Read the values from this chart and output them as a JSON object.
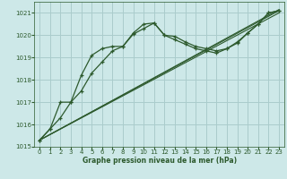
{
  "bg_color": "#cde8e8",
  "grid_color": "#aacccc",
  "line_color": "#2d5a2d",
  "marker_color": "#2d5a2d",
  "xlabel": "Graphe pression niveau de la mer (hPa)",
  "xlabel_color": "#2d5a2d",
  "ylim": [
    1015.0,
    1021.5
  ],
  "yticks": [
    1015,
    1016,
    1017,
    1018,
    1019,
    1020,
    1021
  ],
  "xlim": [
    -0.5,
    23.5
  ],
  "xticks": [
    0,
    1,
    2,
    3,
    4,
    5,
    6,
    7,
    8,
    9,
    10,
    11,
    12,
    13,
    14,
    15,
    16,
    17,
    18,
    19,
    20,
    21,
    22,
    23
  ],
  "curve1_x": [
    0,
    1,
    2,
    3,
    4,
    5,
    6,
    7,
    8,
    9,
    10,
    11,
    12,
    13,
    14,
    15,
    16,
    17,
    18,
    19,
    20,
    21,
    22,
    23
  ],
  "curve1_y": [
    1015.3,
    1015.8,
    1017.0,
    1017.0,
    1018.2,
    1019.1,
    1019.4,
    1019.5,
    1019.5,
    1020.1,
    1020.5,
    1020.55,
    1020.0,
    1019.95,
    1019.7,
    1019.5,
    1019.4,
    1019.3,
    1019.4,
    1019.65,
    1020.1,
    1020.5,
    1021.0,
    1021.1
  ],
  "curve2_x": [
    0,
    1,
    2,
    3,
    4,
    5,
    6,
    7,
    8,
    9,
    10,
    11,
    12,
    13,
    14,
    15,
    16,
    17,
    18,
    19,
    20,
    21,
    22,
    23
  ],
  "curve2_y": [
    1015.3,
    1015.8,
    1016.3,
    1017.0,
    1017.5,
    1018.3,
    1018.8,
    1019.3,
    1019.5,
    1020.05,
    1020.3,
    1020.55,
    1020.0,
    1019.8,
    1019.6,
    1019.4,
    1019.3,
    1019.2,
    1019.4,
    1019.7,
    1020.1,
    1020.5,
    1021.0,
    1021.1
  ],
  "line1_y": [
    1015.3,
    1021.0
  ],
  "line2_y": [
    1015.3,
    1021.1
  ],
  "line3_y": [
    1015.3,
    1021.15
  ]
}
